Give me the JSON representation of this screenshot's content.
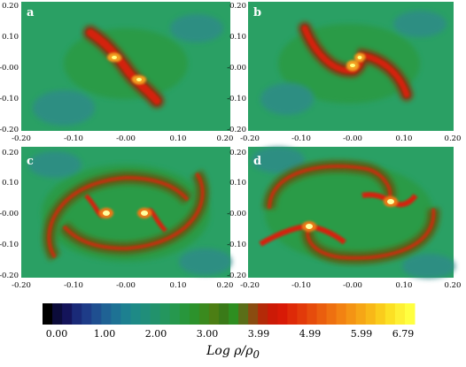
{
  "panels": [
    {
      "label": "a",
      "x_ticks": [
        "-0.20",
        "-0.10",
        "-0.00",
        "0.10",
        "0.20"
      ],
      "y_ticks": [
        "0.20",
        "0.10",
        "-0.00",
        "-0.10",
        "-0.20"
      ]
    },
    {
      "label": "b",
      "x_ticks": [
        "-0.20",
        "-0.10",
        "-0.00",
        "0.10",
        "0.20"
      ],
      "y_ticks": [
        "0.20",
        "0.10",
        "-0.00",
        "-0.10",
        "-0.20"
      ]
    },
    {
      "label": "c",
      "x_ticks": [
        "-0.20",
        "-0.10",
        "-0.00",
        "0.10",
        "0.20"
      ],
      "y_ticks": [
        "0.20",
        "0.10",
        "-0.00",
        "-0.10",
        "-0.20"
      ]
    },
    {
      "label": "d",
      "x_ticks": [
        "-0.20",
        "-0.10",
        "-0.00",
        "0.10",
        "0.20"
      ],
      "y_ticks": [
        "0.20",
        "0.10",
        "-0.00",
        "-0.10",
        "-0.20"
      ]
    }
  ],
  "colorbar": {
    "ticks": [
      "0.00",
      "1.00",
      "2.00",
      "3.00",
      "3.99",
      "4.99",
      "5.99",
      "6.79"
    ],
    "title_main": "Log ρ/ρ",
    "title_sub": "0",
    "colors": [
      "#000000",
      "#0c0c3a",
      "#14145a",
      "#1a2a78",
      "#1e3c88",
      "#1f4f90",
      "#1f6294",
      "#1e7294",
      "#1d8090",
      "#1e8a86",
      "#208e7a",
      "#22926c",
      "#24965e",
      "#26984e",
      "#28963c",
      "#2c922c",
      "#3a8a1e",
      "#4c7e14",
      "#3a7a18",
      "#2e8e20",
      "#5a6e18",
      "#8a4c10",
      "#b42a08",
      "#cc1a06",
      "#d81a06",
      "#de2a08",
      "#e23a0a",
      "#e64c0c",
      "#ea5e0e",
      "#ee7010",
      "#f28212",
      "#f49414",
      "#f6a616",
      "#f8b818",
      "#facc1c",
      "#fce024",
      "#fef034",
      "#ffff40"
    ]
  },
  "chart_data": {
    "type": "heatmap",
    "panels": [
      "a",
      "b",
      "c",
      "d"
    ],
    "xlim": [
      -0.2,
      0.2
    ],
    "ylim": [
      -0.2,
      0.2
    ],
    "colorbar_range": [
      0.0,
      6.79
    ],
    "colorbar_label": "Log ρ/ρ0"
  }
}
